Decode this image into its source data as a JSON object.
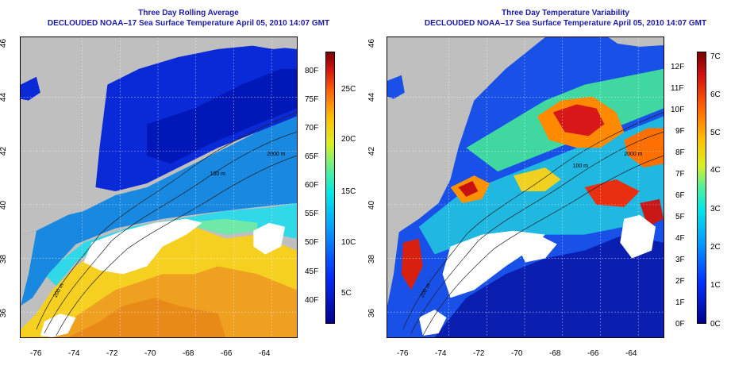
{
  "left_panel": {
    "title": "Three Day Rolling Average",
    "subtitle": "DECLOUDED NOAA–17 Sea Surface Temperature April 05, 2010 14:07 GMT",
    "x_ticks": [
      "-76",
      "-74",
      "-72",
      "-70",
      "-68",
      "-66",
      "-64"
    ],
    "y_ticks": [
      "36",
      "38",
      "40",
      "42",
      "44",
      "46"
    ],
    "colorbar_left": [
      "40F",
      "45F",
      "50F",
      "55F",
      "60F",
      "65F",
      "70F",
      "75F",
      "80F"
    ],
    "colorbar_right": [
      "5C",
      "10C",
      "15C",
      "20C",
      "25C"
    ],
    "contours": [
      "100 m",
      "2000 m",
      "200 m"
    ]
  },
  "right_panel": {
    "title": "Three Day Temperature Variability",
    "subtitle": "DECLOUDED NOAA–17 Sea Surface Temperature April 05, 2010 14:07 GMT",
    "x_ticks": [
      "-76",
      "-74",
      "-72",
      "-70",
      "-68",
      "-66",
      "-64"
    ],
    "y_ticks": [
      "36",
      "38",
      "40",
      "42",
      "44",
      "46"
    ],
    "colorbar_left": [
      "0F",
      "1F",
      "2F",
      "3F",
      "4F",
      "5F",
      "6F",
      "7F",
      "8F",
      "9F",
      "10F",
      "11F",
      "12F"
    ],
    "colorbar_right": [
      "0C",
      "1C",
      "2C",
      "3C",
      "4C",
      "5C",
      "6C",
      "7C"
    ],
    "contours": [
      "100 m",
      "2000 m",
      "200 m"
    ]
  },
  "colors": {
    "land": "#bfbfbf",
    "title": "#1a1aa8"
  }
}
